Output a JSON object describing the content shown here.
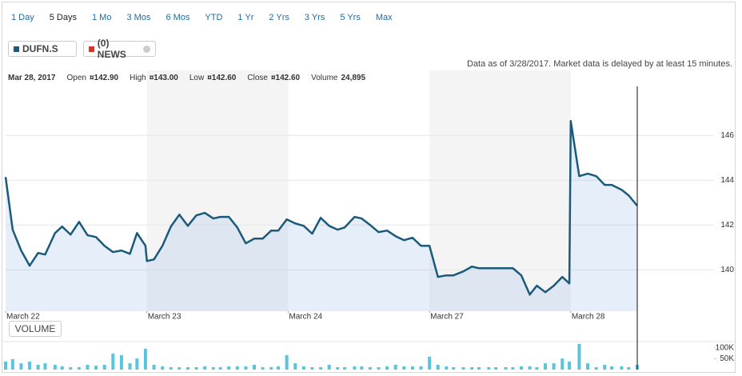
{
  "toolbar": {
    "ranges": [
      "1 Day",
      "5 Days",
      "1 Mo",
      "3 Mos",
      "6 Mos",
      "YTD",
      "1 Yr",
      "2 Yrs",
      "3 Yrs",
      "5 Yrs",
      "Max"
    ],
    "active": "5 Days"
  },
  "news": "(0) NEWS",
  "note": "Data as of 3/28/2017. Market data is delayed by at least 15 minutes.",
  "quote": {
    "date": "Mar 28, 2017",
    "fields": [
      {
        "label": "Open",
        "value": "¤142.90"
      },
      {
        "label": "High",
        "value": "¤143.00"
      },
      {
        "label": "Low",
        "value": "¤142.60"
      },
      {
        "label": "Close",
        "value": "¤142.60"
      },
      {
        "label": "Volume",
        "value": "24,895"
      }
    ]
  },
  "chart_data": [
    {
      "type": "line",
      "xlim": [
        0,
        4.98
      ],
      "xticks": [
        {
          "value": 0,
          "label": "March 22"
        },
        {
          "value": 1,
          "label": "March 23"
        },
        {
          "value": 2,
          "label": "March 24"
        },
        {
          "value": 3,
          "label": "March 27"
        },
        {
          "value": 4,
          "label": "March 28"
        }
      ],
      "ylim": [
        138.15,
        148.9
      ],
      "yticks": [
        140,
        142,
        144,
        146
      ],
      "grid": true,
      "x": [
        0,
        0.05,
        0.11,
        0.17,
        0.23,
        0.28,
        0.35,
        0.4,
        0.46,
        0.52,
        0.58,
        0.64,
        0.7,
        0.76,
        0.82,
        0.88,
        0.93,
        0.99,
        1.0,
        1.05,
        1.11,
        1.17,
        1.23,
        1.29,
        1.35,
        1.41,
        1.47,
        1.52,
        1.58,
        1.64,
        1.7,
        1.76,
        1.82,
        1.88,
        1.93,
        1.99,
        2.05,
        2.11,
        2.17,
        2.23,
        2.29,
        2.35,
        2.4,
        2.47,
        2.52,
        2.58,
        2.64,
        2.7,
        2.76,
        2.82,
        2.88,
        2.94,
        3.0,
        3.06,
        3.12,
        3.17,
        3.24,
        3.3,
        3.35,
        3.42,
        3.47,
        3.54,
        3.59,
        3.65,
        3.71,
        3.76,
        3.82,
        3.88,
        3.94,
        3.99,
        4.0,
        4.06,
        4.12,
        4.18,
        4.24,
        4.29,
        4.36,
        4.41,
        4.47
      ],
      "series": [
        {
          "name": "DUFN.S",
          "color": "#1b5a7a",
          "values": [
            144.14,
            141.79,
            140.86,
            140.18,
            140.75,
            140.68,
            141.64,
            141.93,
            141.57,
            142.14,
            141.54,
            141.46,
            141.07,
            140.79,
            140.86,
            140.71,
            141.64,
            141.07,
            140.39,
            140.46,
            141.07,
            141.93,
            142.46,
            141.96,
            142.43,
            142.54,
            142.29,
            142.36,
            142.36,
            141.89,
            141.18,
            141.39,
            141.39,
            141.75,
            141.75,
            142.25,
            142.07,
            141.96,
            141.61,
            142.32,
            141.96,
            141.79,
            141.89,
            142.36,
            142.29,
            142.0,
            141.68,
            141.75,
            141.5,
            141.32,
            141.43,
            141.07,
            141.07,
            139.68,
            139.75,
            139.75,
            139.93,
            140.14,
            140.07,
            140.07,
            140.07,
            140.07,
            140.07,
            139.75,
            138.89,
            139.29,
            139.0,
            139.29,
            139.68,
            139.39,
            146.64,
            144.18,
            144.29,
            144.18,
            143.79,
            143.79,
            143.57,
            143.32,
            142.86
          ]
        }
      ]
    },
    {
      "type": "bar",
      "title": "VOLUME",
      "color": "#5bc4dc",
      "xlim": [
        0,
        4.98
      ],
      "ylim": [
        0,
        125000
      ],
      "yticks": [
        {
          "value": 50000,
          "label": "50K"
        },
        {
          "value": 100000,
          "label": "100K"
        }
      ],
      "x": [
        0,
        0.05,
        0.11,
        0.17,
        0.23,
        0.28,
        0.35,
        0.4,
        0.46,
        0.52,
        0.58,
        0.64,
        0.7,
        0.76,
        0.82,
        0.88,
        0.93,
        0.99,
        1.05,
        1.11,
        1.17,
        1.23,
        1.29,
        1.35,
        1.41,
        1.47,
        1.52,
        1.58,
        1.64,
        1.7,
        1.76,
        1.82,
        1.88,
        1.93,
        1.99,
        2.05,
        2.11,
        2.17,
        2.23,
        2.29,
        2.35,
        2.4,
        2.47,
        2.52,
        2.58,
        2.64,
        2.7,
        2.76,
        2.82,
        2.88,
        2.94,
        3.0,
        3.06,
        3.12,
        3.17,
        3.24,
        3.3,
        3.35,
        3.42,
        3.47,
        3.54,
        3.59,
        3.65,
        3.71,
        3.76,
        3.82,
        3.88,
        3.94,
        3.99,
        4.06,
        4.12,
        4.18,
        4.24,
        4.29,
        4.36,
        4.41,
        4.47
      ],
      "values": [
        37000,
        48000,
        29000,
        37000,
        22000,
        29000,
        22000,
        15000,
        11000,
        11000,
        22000,
        18000,
        22000,
        74000,
        66000,
        29000,
        51000,
        96000,
        22000,
        15000,
        11000,
        11000,
        11000,
        11000,
        15000,
        11000,
        11000,
        15000,
        15000,
        15000,
        22000,
        11000,
        11000,
        15000,
        66000,
        29000,
        15000,
        11000,
        11000,
        22000,
        11000,
        11000,
        15000,
        15000,
        11000,
        11000,
        15000,
        22000,
        15000,
        15000,
        15000,
        59000,
        22000,
        15000,
        11000,
        11000,
        11000,
        11000,
        11000,
        11000,
        11000,
        11000,
        15000,
        15000,
        11000,
        29000,
        29000,
        51000,
        37000,
        118000,
        29000,
        11000,
        22000,
        15000,
        15000,
        11000,
        22000
      ]
    }
  ]
}
